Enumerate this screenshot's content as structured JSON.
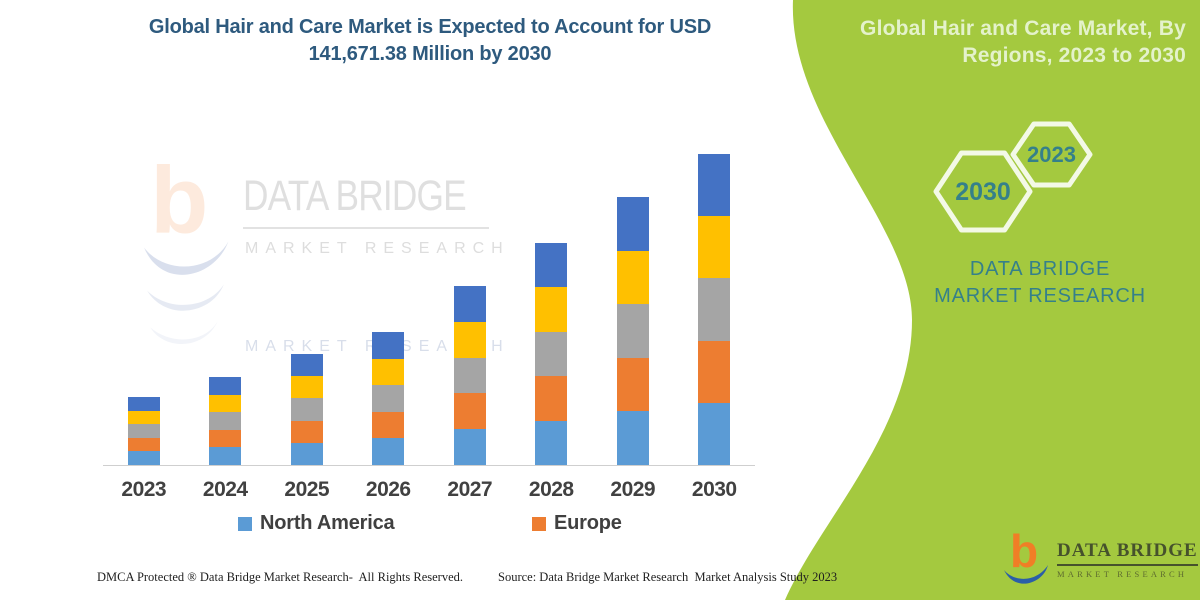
{
  "header": {
    "title": "Global Hair and Care Market is Expected to Account for USD 141,671.38 Million by 2030"
  },
  "side_panel": {
    "title": "Global Hair and Care Market, By Regions, 2023 to 2030",
    "hexagon_years": [
      "2030",
      "2023"
    ],
    "brand": "DATA BRIDGE MARKET RESEARCH"
  },
  "watermark": {
    "line1": "DATA BRIDGE",
    "line2": "MARKET RESEARCH",
    "reflection": "MARKET RESEARCH"
  },
  "legend": [
    {
      "label": "North America",
      "color": "#5B9BD5"
    },
    {
      "label": "Europe",
      "color": "#ED7D31"
    }
  ],
  "footer": {
    "left": "DMCA Protected ® Data Bridge Market Research-  All Rights Reserved.",
    "right": "Source: Data Bridge Market Research  Market Analysis Study 2023"
  },
  "logo": {
    "name": "DATA BRIDGE",
    "sub": "MARKET RESEARCH"
  },
  "colors": {
    "panel_green": "#a4c93f",
    "hex_outline": "#f3f9e6",
    "accent_teal": "#35808a",
    "headline_blue": "#2e5a7e",
    "axis_label_gray": "#414141",
    "logo_orange": "#F07E26",
    "logo_blue": "#2B5EA7"
  },
  "chart_data": {
    "type": "bar",
    "stacked": true,
    "title": "Global Hair and Care Market, By Regions, 2023 to 2030",
    "unit": "USD Million",
    "categories": [
      "2023",
      "2024",
      "2025",
      "2026",
      "2027",
      "2028",
      "2029",
      "2030"
    ],
    "series": [
      {
        "name": "North America",
        "color": "#5B9BD5",
        "in_legend": true,
        "values": [
          6195,
          8017,
          10113,
          12117,
          16308,
          20225,
          24416,
          28334.28
        ]
      },
      {
        "name": "Europe",
        "color": "#ED7D31",
        "in_legend": true,
        "values": [
          6195,
          8017,
          10113,
          12117,
          16308,
          20225,
          24416,
          28334.28
        ]
      },
      {
        "name": "Unlabeled (gray)",
        "color": "#A5A5A5",
        "in_legend": false,
        "values": [
          6195,
          8017,
          10113,
          12117,
          16308,
          20225,
          24416,
          28334.28
        ]
      },
      {
        "name": "Unlabeled (yellow)",
        "color": "#FFC000",
        "in_legend": false,
        "values": [
          6195,
          8017,
          10113,
          12117,
          16308,
          20225,
          24416,
          28334.28
        ]
      },
      {
        "name": "Unlabeled (dark blue)",
        "color": "#4472C4",
        "in_legend": false,
        "values": [
          6195,
          8017,
          10113,
          12117,
          16308,
          20225,
          24416,
          28334.28
        ]
      }
    ],
    "totals_usd_million": [
      30975,
      40085,
      50565,
      60585,
      81540,
      101125,
      122080,
      141671.38
    ],
    "legend_entries": [
      "North America",
      "Europe"
    ],
    "legend_position": "bottom",
    "x_axis_visible": true,
    "y_axis_visible": false,
    "gridlines": false,
    "ylim": [
      0,
      150000
    ]
  }
}
